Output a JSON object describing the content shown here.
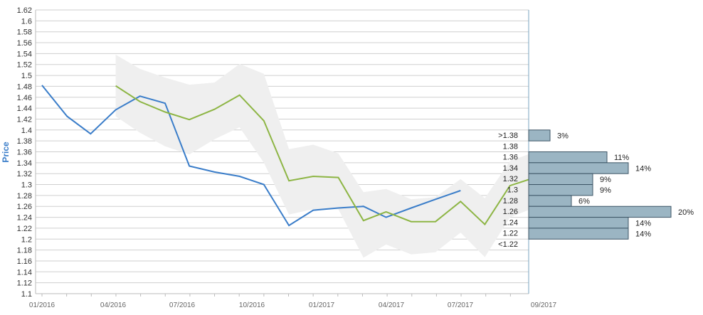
{
  "chart_data": {
    "type": "line",
    "ylabel": "Price",
    "ylim": [
      1.1,
      1.62
    ],
    "yticks": [
      "1.1",
      "1.12",
      "1.14",
      "1.16",
      "1.18",
      "1.2",
      "1.22",
      "1.24",
      "1.26",
      "1.28",
      "1.3",
      "1.32",
      "1.34",
      "1.36",
      "1.38",
      "1.4",
      "1.42",
      "1.44",
      "1.46",
      "1.48",
      "1.5",
      "1.52",
      "1.54",
      "1.56",
      "1.58",
      "1.6",
      "1.62"
    ],
    "xticks": [
      "01/2016",
      "04/2016",
      "07/2016",
      "10/2016",
      "01/2017",
      "04/2017",
      "07/2017",
      "09/2017"
    ],
    "grid": true,
    "series": [
      {
        "color": "#3a7dc9",
        "points": [
          [
            "2016-01-01",
            1.482
          ],
          [
            "2016-02-01",
            1.425
          ],
          [
            "2016-03-01",
            1.393
          ],
          [
            "2016-04-01",
            1.437
          ],
          [
            "2016-05-01",
            1.462
          ],
          [
            "2016-06-01",
            1.449
          ],
          [
            "2016-07-01",
            1.334
          ],
          [
            "2016-08-01",
            1.323
          ],
          [
            "2016-09-01",
            1.315
          ],
          [
            "2016-10-01",
            1.3
          ],
          [
            "2016-11-01",
            1.225
          ],
          [
            "2016-12-01",
            1.253
          ],
          [
            "2017-01-01",
            1.257
          ],
          [
            "2017-02-01",
            1.26
          ],
          [
            "2017-03-01",
            1.24
          ],
          [
            "2017-04-01",
            1.257
          ],
          [
            "2017-05-01",
            1.273
          ],
          [
            "2017-06-01",
            1.289
          ]
        ]
      },
      {
        "color": "#8db544",
        "points": [
          [
            "2016-04-01",
            1.481
          ],
          [
            "2016-05-01",
            1.452
          ],
          [
            "2016-06-01",
            1.433
          ],
          [
            "2016-07-01",
            1.419
          ],
          [
            "2016-08-01",
            1.438
          ],
          [
            "2016-09-01",
            1.464
          ],
          [
            "2016-10-01",
            1.417
          ],
          [
            "2016-11-01",
            1.307
          ],
          [
            "2016-12-01",
            1.315
          ],
          [
            "2017-01-01",
            1.313
          ],
          [
            "2017-02-01",
            1.234
          ],
          [
            "2017-03-01",
            1.25
          ],
          [
            "2017-04-01",
            1.232
          ],
          [
            "2017-05-01",
            1.232
          ],
          [
            "2017-06-01",
            1.269
          ],
          [
            "2017-07-01",
            1.227
          ],
          [
            "2017-08-01",
            1.298
          ],
          [
            "2017-09-01",
            1.313
          ],
          [
            "2017-10-01",
            1.278
          ]
        ]
      }
    ],
    "band": {
      "color": "#efefef",
      "upper": [
        [
          "2016-04-01",
          1.538
        ],
        [
          "2016-05-01",
          1.512
        ],
        [
          "2016-06-01",
          1.496
        ],
        [
          "2016-07-01",
          1.483
        ],
        [
          "2016-08-01",
          1.487
        ],
        [
          "2016-09-01",
          1.521
        ],
        [
          "2016-10-01",
          1.503
        ],
        [
          "2016-11-01",
          1.365
        ],
        [
          "2016-12-01",
          1.373
        ],
        [
          "2017-01-01",
          1.357
        ],
        [
          "2017-02-01",
          1.286
        ],
        [
          "2017-03-01",
          1.292
        ],
        [
          "2017-04-01",
          1.273
        ],
        [
          "2017-05-01",
          1.277
        ],
        [
          "2017-06-01",
          1.31
        ],
        [
          "2017-07-01",
          1.275
        ],
        [
          "2017-08-01",
          1.343
        ],
        [
          "2017-09-01",
          1.36
        ],
        [
          "2017-10-01",
          1.325
        ]
      ],
      "lower": [
        [
          "2016-04-01",
          1.425
        ],
        [
          "2016-05-01",
          1.395
        ],
        [
          "2016-06-01",
          1.37
        ],
        [
          "2016-07-01",
          1.355
        ],
        [
          "2016-08-01",
          1.383
        ],
        [
          "2016-09-01",
          1.405
        ],
        [
          "2016-10-01",
          1.34
        ],
        [
          "2016-11-01",
          1.245
        ],
        [
          "2016-12-01",
          1.255
        ],
        [
          "2017-01-01",
          1.255
        ],
        [
          "2017-02-01",
          1.166
        ],
        [
          "2017-03-01",
          1.19
        ],
        [
          "2017-04-01",
          1.172
        ],
        [
          "2017-05-01",
          1.176
        ],
        [
          "2017-06-01",
          1.212
        ],
        [
          "2017-07-01",
          1.167
        ],
        [
          "2017-08-01",
          1.24
        ],
        [
          "2017-09-01",
          1.258
        ],
        [
          "2017-10-01",
          1.225
        ]
      ]
    },
    "histogram": {
      "color": "#9bb5c3",
      "edge_color": "#3d5566",
      "bins": [
        {
          "label": ">1.38",
          "low": 1.38,
          "high": 1.4,
          "percent": "3%",
          "value": 3
        },
        {
          "label": "1.38",
          "low": 1.34,
          "high": 1.36,
          "percent": "11%",
          "value": 11
        },
        {
          "label": "1.36",
          "low": 1.32,
          "high": 1.34,
          "percent": "14%",
          "value": 14
        },
        {
          "label": "1.34",
          "low": 1.3,
          "high": 1.32,
          "percent": "9%",
          "value": 9
        },
        {
          "label": "1.32",
          "low": 1.28,
          "high": 1.3,
          "percent": "9%",
          "value": 9
        },
        {
          "label": "1.3",
          "low": 1.26,
          "high": 1.28,
          "percent": "6%",
          "value": 6
        },
        {
          "label": "1.28",
          "low": 1.24,
          "high": 1.26,
          "percent": "20%",
          "value": 20
        },
        {
          "label": "1.26",
          "low": 1.22,
          "high": 1.24,
          "percent": "14%",
          "value": 14
        },
        {
          "label": "1.24",
          "low": 1.2,
          "high": 1.22,
          "percent": "14%",
          "value": 14
        },
        {
          "label": "1.22",
          "low": null,
          "high": null,
          "percent": null,
          "value": null
        },
        {
          "label": "<1.22",
          "low": null,
          "high": null,
          "percent": null,
          "value": null
        }
      ]
    }
  }
}
